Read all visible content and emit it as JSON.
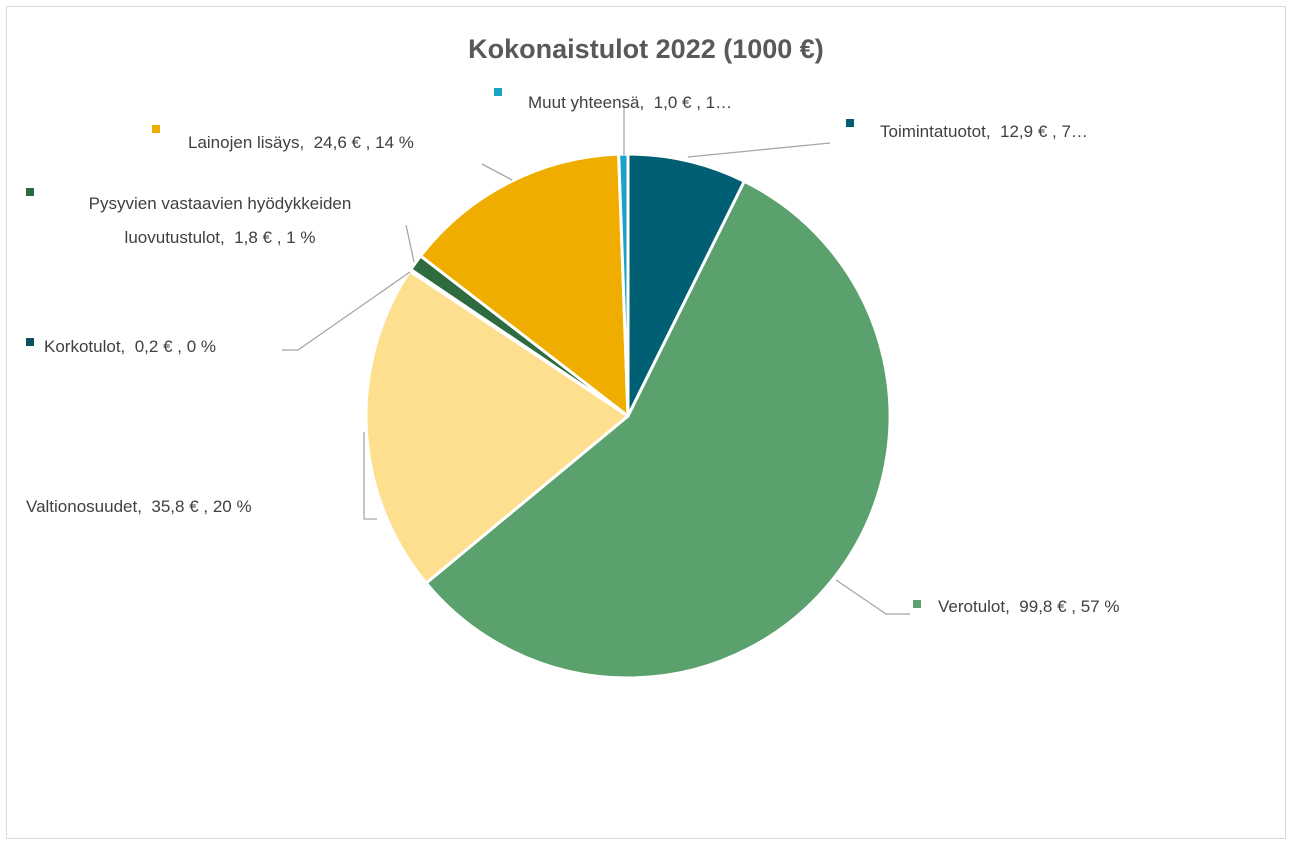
{
  "chart_data": {
    "type": "pie",
    "title": "Kokonaistulot 2022 (1000 €)",
    "categories": [
      "Toimintatuotot",
      "Verotulot",
      "Valtionosuudet",
      "Korkotulot",
      "Pysyvien vastaavien hyödykkeiden luovutustulot",
      "Lainojen lisäys",
      "Muut yhteensä"
    ],
    "values": [
      12.9,
      99.8,
      35.8,
      0.2,
      1.8,
      24.6,
      1.0
    ],
    "value_labels": [
      ",  12,9 € , 7…",
      ",  99,8 € , 57 %",
      ",  35,8 € , 20 %",
      ",  0,2 € , 0 %",
      ",  1,8 € , 1 %",
      ",  24,6 € , 14 %",
      ",  1,0 € , 1…"
    ],
    "colors": [
      "#005f73",
      "#5ba16e",
      "#fddf8f",
      "#0b4f5c",
      "#2e6b3f",
      "#efad00",
      "#1aa3c9"
    ]
  }
}
